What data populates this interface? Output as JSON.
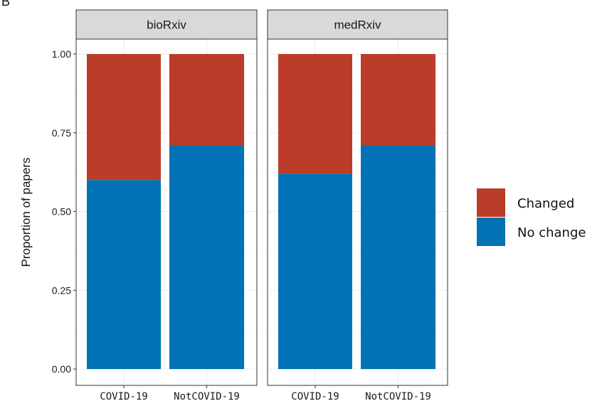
{
  "figure_letter": "B",
  "colors": {
    "Changed": "#BB3C28",
    "No change": "#0072B5"
  },
  "chart_data": {
    "type": "bar",
    "stacked": true,
    "facets": [
      "bioRxiv",
      "medRxiv"
    ],
    "categories": [
      "COVID-19",
      "NotCOVID-19"
    ],
    "series": [
      {
        "name": "No change",
        "values": {
          "bioRxiv": [
            0.6,
            0.71
          ],
          "medRxiv": [
            0.62,
            0.71
          ]
        }
      },
      {
        "name": "Changed",
        "values": {
          "bioRxiv": [
            0.4,
            0.29
          ],
          "medRxiv": [
            0.38,
            0.29
          ]
        }
      }
    ],
    "title": "",
    "xlabel": "",
    "ylabel": "Proportion of papers",
    "ylim": [
      0,
      1
    ],
    "yticks": [
      "0.00",
      "0.25",
      "0.50",
      "0.75",
      "1.00"
    ],
    "grid": true,
    "legend": {
      "position": "right",
      "entries": [
        "Changed",
        "No change"
      ]
    }
  }
}
